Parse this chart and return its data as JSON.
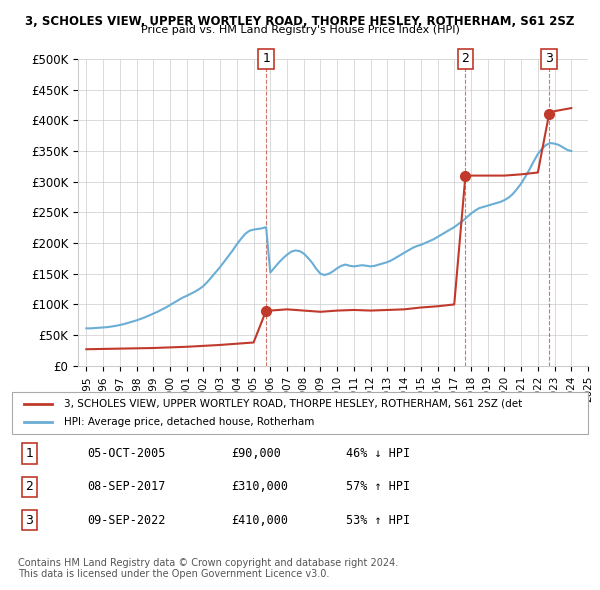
{
  "title_line1": "3, SCHOLES VIEW, UPPER WORTLEY ROAD, THORPE HESLEY, ROTHERHAM, S61 2SZ",
  "title_line2": "Price paid vs. HM Land Registry's House Price Index (HPI)",
  "ylabel": "",
  "ylim": [
    0,
    500000
  ],
  "yticks": [
    0,
    50000,
    100000,
    150000,
    200000,
    250000,
    300000,
    350000,
    400000,
    450000,
    500000
  ],
  "ytick_labels": [
    "£0",
    "£50K",
    "£100K",
    "£150K",
    "£200K",
    "£250K",
    "£300K",
    "£350K",
    "£400K",
    "£450K",
    "£500K"
  ],
  "hpi_color": "#6aaed6",
  "property_color": "#c0392b",
  "sale_marker_color": "#c0392b",
  "background_color": "#ffffff",
  "grid_color": "#cccccc",
  "sale_points": [
    {
      "year": 2005.75,
      "price": 90000,
      "label": "1"
    },
    {
      "year": 2017.67,
      "price": 310000,
      "label": "2"
    },
    {
      "year": 2022.67,
      "price": 410000,
      "label": "3"
    }
  ],
  "sale_table": [
    {
      "num": "1",
      "date": "05-OCT-2005",
      "price": "£90,000",
      "change": "46% ↓ HPI"
    },
    {
      "num": "2",
      "date": "08-SEP-2017",
      "price": "£310,000",
      "change": "57% ↑ HPI"
    },
    {
      "num": "3",
      "date": "09-SEP-2022",
      "price": "£410,000",
      "change": "53% ↑ HPI"
    }
  ],
  "legend_line1": "3, SCHOLES VIEW, UPPER WORTLEY ROAD, THORPE HESLEY, ROTHERHAM, S61 2SZ (det",
  "legend_line2": "HPI: Average price, detached house, Rotherham",
  "footer_line1": "Contains HM Land Registry data © Crown copyright and database right 2024.",
  "footer_line2": "This data is licensed under the Open Government Licence v3.0.",
  "hpi_data": {
    "years": [
      1995.0,
      1995.25,
      1995.5,
      1995.75,
      1996.0,
      1996.25,
      1996.5,
      1996.75,
      1997.0,
      1997.25,
      1997.5,
      1997.75,
      1998.0,
      1998.25,
      1998.5,
      1998.75,
      1999.0,
      1999.25,
      1999.5,
      1999.75,
      2000.0,
      2000.25,
      2000.5,
      2000.75,
      2001.0,
      2001.25,
      2001.5,
      2001.75,
      2002.0,
      2002.25,
      2002.5,
      2002.75,
      2003.0,
      2003.25,
      2003.5,
      2003.75,
      2004.0,
      2004.25,
      2004.5,
      2004.75,
      2005.0,
      2005.25,
      2005.5,
      2005.75,
      2006.0,
      2006.25,
      2006.5,
      2006.75,
      2007.0,
      2007.25,
      2007.5,
      2007.75,
      2008.0,
      2008.25,
      2008.5,
      2008.75,
      2009.0,
      2009.25,
      2009.5,
      2009.75,
      2010.0,
      2010.25,
      2010.5,
      2010.75,
      2011.0,
      2011.25,
      2011.5,
      2011.75,
      2012.0,
      2012.25,
      2012.5,
      2012.75,
      2013.0,
      2013.25,
      2013.5,
      2013.75,
      2014.0,
      2014.25,
      2014.5,
      2014.75,
      2015.0,
      2015.25,
      2015.5,
      2015.75,
      2016.0,
      2016.25,
      2016.5,
      2016.75,
      2017.0,
      2017.25,
      2017.5,
      2017.75,
      2018.0,
      2018.25,
      2018.5,
      2018.75,
      2019.0,
      2019.25,
      2019.5,
      2019.75,
      2020.0,
      2020.25,
      2020.5,
      2020.75,
      2021.0,
      2021.25,
      2021.5,
      2021.75,
      2022.0,
      2022.25,
      2022.5,
      2022.75,
      2023.0,
      2023.25,
      2023.5,
      2023.75,
      2024.0
    ],
    "values": [
      61000,
      61000,
      61500,
      62000,
      62500,
      63000,
      64000,
      65000,
      66500,
      68000,
      70000,
      72000,
      74000,
      76500,
      79000,
      82000,
      85000,
      88000,
      91500,
      95000,
      99000,
      103000,
      107000,
      111000,
      114000,
      117500,
      121000,
      125000,
      130000,
      137000,
      145000,
      153000,
      161000,
      170000,
      179000,
      188000,
      198000,
      207000,
      215000,
      220000,
      222000,
      223000,
      224000,
      226000,
      152000,
      160000,
      168000,
      175000,
      181000,
      186000,
      188000,
      187000,
      183000,
      176000,
      168000,
      158000,
      150000,
      148000,
      150000,
      154000,
      159000,
      163000,
      165000,
      163000,
      162000,
      163000,
      164000,
      163000,
      162000,
      163000,
      165000,
      167000,
      169000,
      172000,
      176000,
      180000,
      184000,
      188000,
      192000,
      195000,
      197000,
      200000,
      203000,
      206000,
      210000,
      214000,
      218000,
      222000,
      226000,
      231000,
      236000,
      242000,
      248000,
      253000,
      257000,
      259000,
      261000,
      263000,
      265000,
      267000,
      270000,
      274000,
      280000,
      288000,
      297000,
      308000,
      320000,
      333000,
      345000,
      354000,
      360000,
      363000,
      362000,
      360000,
      356000,
      352000,
      350000
    ]
  },
  "property_data": {
    "years": [
      1995.0,
      1996.0,
      1997.0,
      1998.0,
      1999.0,
      2000.0,
      2001.0,
      2002.0,
      2003.0,
      2004.0,
      2005.0,
      2005.75,
      2006.0,
      2007.0,
      2008.0,
      2009.0,
      2010.0,
      2011.0,
      2012.0,
      2013.0,
      2014.0,
      2015.0,
      2016.0,
      2017.0,
      2017.67,
      2018.0,
      2019.0,
      2020.0,
      2021.0,
      2022.0,
      2022.67,
      2023.0,
      2024.0
    ],
    "values": [
      27000,
      27500,
      28000,
      28500,
      29000,
      30000,
      31000,
      32500,
      34000,
      36000,
      38000,
      90000,
      90000,
      92000,
      90000,
      88000,
      90000,
      91000,
      90000,
      91000,
      92000,
      95000,
      97000,
      100000,
      310000,
      310000,
      310000,
      310000,
      312000,
      315000,
      410000,
      415000,
      420000
    ]
  }
}
